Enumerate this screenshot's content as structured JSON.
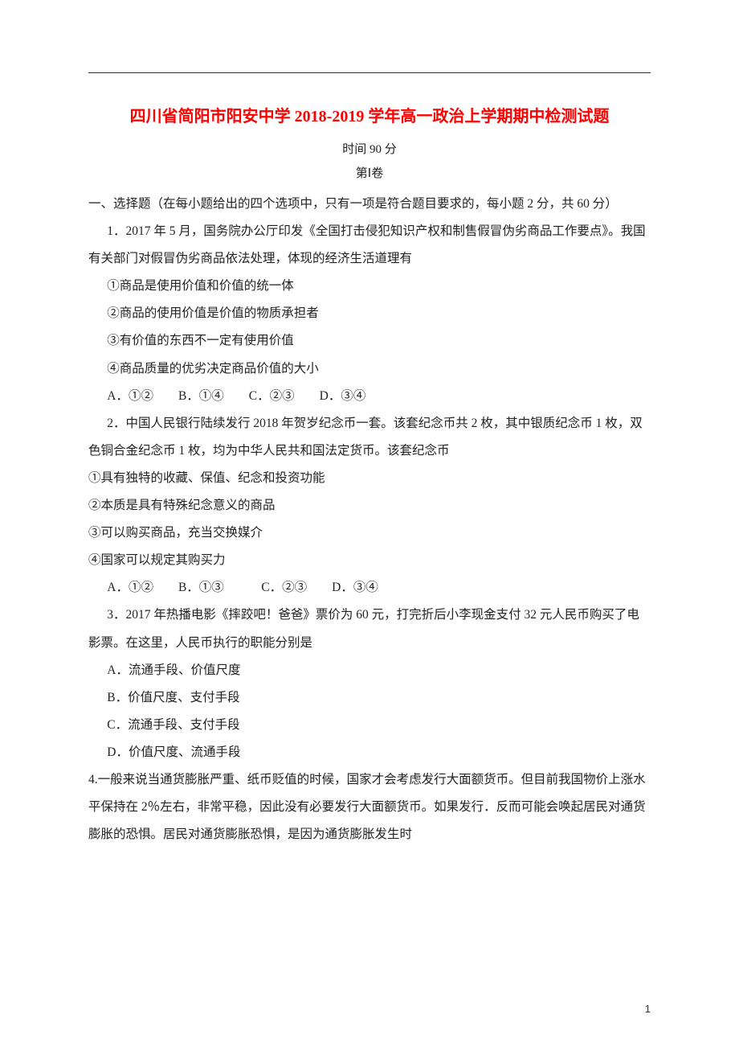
{
  "title": "四川省简阳市阳安中学 2018-2019 学年高一政治上学期期中检测试题",
  "time_label": "时间 90 分",
  "part_label": "第Ⅰ卷",
  "section_instruction": "一、选择题（在每小题给出的四个选项中，只有一项是符合题目要求的，每小题 2 分，共 60 分）",
  "q1": {
    "stem": "1．2017 年 5 月，国务院办公厅印发《全国打击侵犯知识产权和制售假冒伪劣商品工作要点》。我国有关部门对假冒伪劣商品依法处理，体现的经济生活道理有",
    "s1": "①商品是使用价值和价值的统一体",
    "s2": "②商品的使用价值是价值的物质承担者",
    "s3": "③有价值的东西不一定有使用价值",
    "s4": "④商品质量的优劣决定商品价值的大小",
    "opts": "A．①②　　B．①④　　C．②③　　D．③④"
  },
  "q2": {
    "stem": "2．中国人民银行陆续发行 2018 年贺岁纪念币一套。该套纪念币共 2 枚，其中银质纪念币 1 枚，双色铜合金纪念币 1 枚，均为中华人民共和国法定货币。该套纪念币",
    "s1": "①具有独特的收藏、保值、纪念和投资功能",
    "s2": "②本质是具有特殊纪念意义的商品",
    "s3": "③可以购买商品，充当交换媒介",
    "s4": "④国家可以规定其购买力",
    "opts": "A．①②　　B．①③　　　C．②③　　D．③④"
  },
  "q3": {
    "stem": "3．2017 年热播电影《摔跤吧！爸爸》票价为 60 元，打完折后小李现金支付 32 元人民币购买了电影票。在这里，人民币执行的职能分别是",
    "a": "A．流通手段、价值尺度",
    "b": "B．价值尺度、支付手段",
    "c": "C．流通手段、支付手段",
    "d": "D．价值尺度、流通手段"
  },
  "q4": {
    "stem": "4.一般来说当通货膨胀严重、纸币贬值的时候，国家才会考虑发行大面额货币。但目前我国物价上涨水平保持在 2％左右，非常平稳，因此没有必要发行大面额货币。如果发行．反而可能会唤起居民对通货膨胀的恐惧。居民对通货膨胀恐惧，是因为通货膨胀发生时"
  },
  "page_number": "1"
}
